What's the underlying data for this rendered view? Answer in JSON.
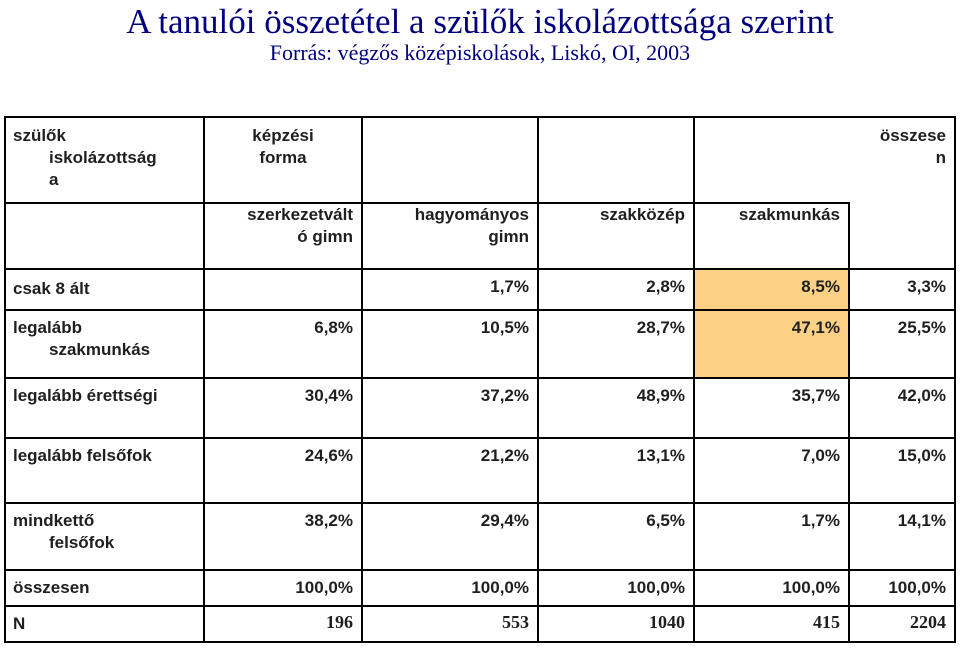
{
  "title": "A tanulói összetétel a szülők iskolázottsága szerint",
  "subtitle": "Forrás: végzős középiskolások, Liskó, OI, 2003",
  "header": {
    "parent_label_line1": "szülők",
    "parent_label_line2": "iskolázottság",
    "parent_label_line3": "a",
    "form_label_line1": "képzési",
    "form_label_line2": "forma",
    "total_label_line1": "összese",
    "total_label_line2": "n",
    "col1_line1": "szerkezetvált",
    "col1_line2": "ó gimn",
    "col2_line1": "hagyományos",
    "col2_line2": "gimn",
    "col3": "szakközép",
    "col4": "szakmunkás"
  },
  "rows": [
    {
      "label1": "csak 8 ált",
      "label2": "",
      "values": [
        "",
        "1,7%",
        "2,8%",
        "8,5%",
        "3,3%"
      ]
    },
    {
      "label1": "legalább",
      "label2": "szakmunkás",
      "values": [
        "6,8%",
        "10,5%",
        "28,7%",
        "47,1%",
        "25,5%"
      ]
    },
    {
      "label1": "legalább érettségi",
      "label2": "",
      "values": [
        "30,4%",
        "37,2%",
        "48,9%",
        "35,7%",
        "42,0%"
      ]
    },
    {
      "label1": "legalább felsőfok",
      "label2": "",
      "values": [
        "24,6%",
        "21,2%",
        "13,1%",
        "7,0%",
        "15,0%"
      ]
    },
    {
      "label1": "mindkettő",
      "label2": "felsőfok",
      "values": [
        "38,2%",
        "29,4%",
        "6,5%",
        "1,7%",
        "14,1%"
      ]
    },
    {
      "label1": "összesen",
      "label2": "",
      "values": [
        "100,0%",
        "100,0%",
        "100,0%",
        "100,0%",
        "100,0%"
      ]
    },
    {
      "label1": "N",
      "label2": "",
      "values": [
        "196",
        "553",
        "1040",
        "415",
        "2204"
      ]
    }
  ],
  "colors": {
    "title": "#00007f",
    "highlight": "#fcd186",
    "border": "#000000"
  }
}
